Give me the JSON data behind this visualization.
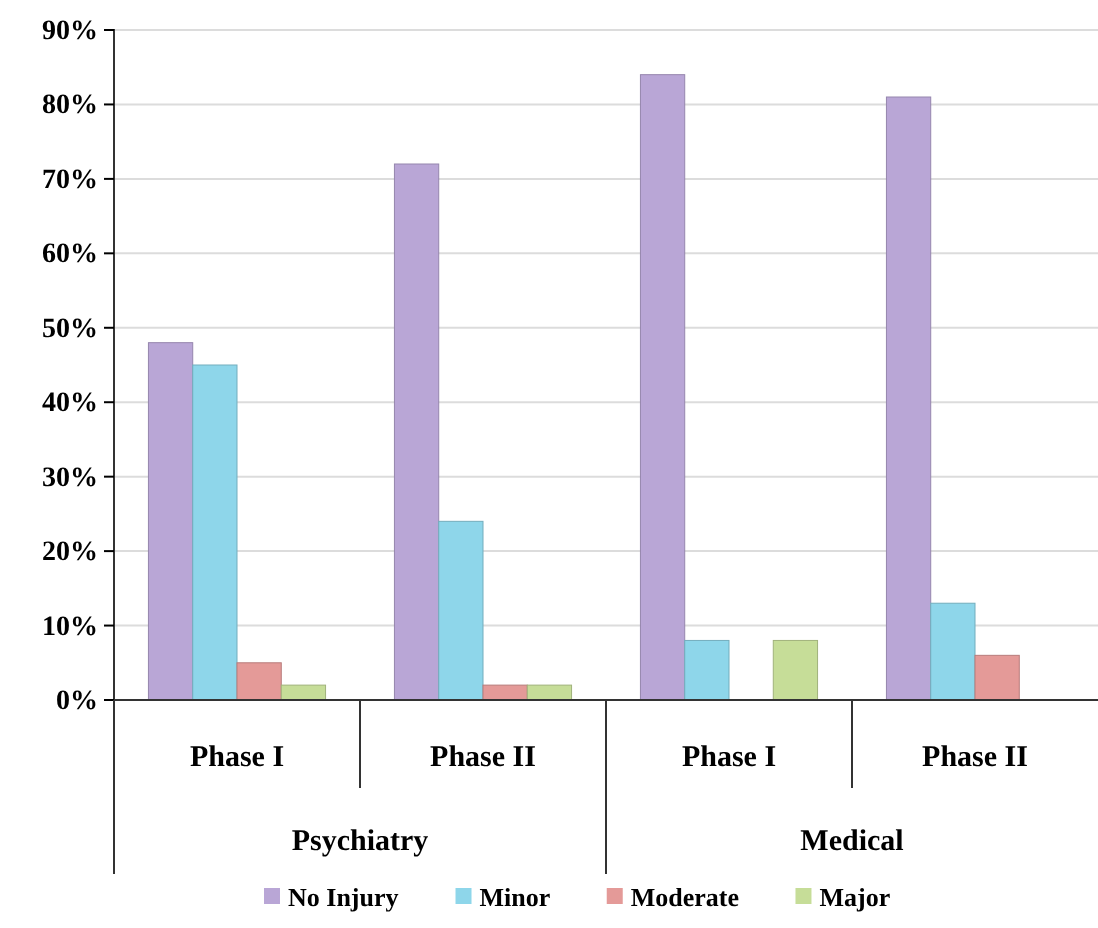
{
  "chart_data": {
    "type": "bar",
    "categories": [
      "Phase I",
      "Phase II",
      "Phase I",
      "Phase II"
    ],
    "series": [
      {
        "name": "No Injury",
        "color": "#b9a6d6",
        "values": [
          48,
          72,
          84,
          81
        ]
      },
      {
        "name": "Minor",
        "color": "#8ed6ea",
        "values": [
          45,
          24,
          8,
          13
        ]
      },
      {
        "name": "Moderate",
        "color": "#e49a98",
        "values": [
          5,
          2,
          0,
          6
        ]
      },
      {
        "name": "Major",
        "color": "#c6dd98",
        "values": [
          2,
          2,
          8,
          0
        ]
      }
    ],
    "annotations": [
      "Psychiatry",
      "Medical"
    ],
    "ylim": [
      0,
      90
    ],
    "yticks": [
      {
        "value": 0,
        "label": "0%"
      },
      {
        "value": 10,
        "label": "10%"
      },
      {
        "value": 20,
        "label": "20%"
      },
      {
        "value": 30,
        "label": "30%"
      },
      {
        "value": 40,
        "label": "40%"
      },
      {
        "value": 50,
        "label": "50%"
      },
      {
        "value": 60,
        "label": "60%"
      },
      {
        "value": 70,
        "label": "70%"
      },
      {
        "value": 80,
        "label": "80%"
      },
      {
        "value": 90,
        "label": "90%"
      }
    ],
    "grid": "y",
    "legend": "bottom"
  }
}
